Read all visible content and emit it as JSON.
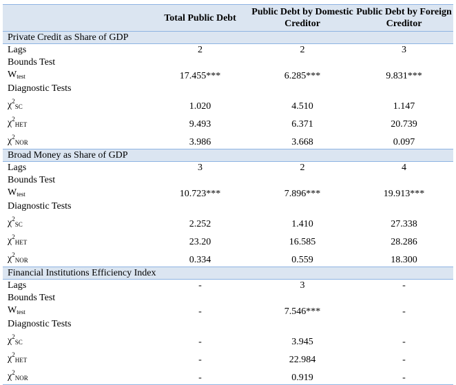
{
  "columns": [
    "",
    "Total Public Debt",
    "Public Debt by Domestic Creditor",
    "Public Debt by Foreign Creditor"
  ],
  "labels": {
    "lags": "Lags",
    "bounds_test": "Bounds Test",
    "w": "W",
    "w_sub": "test",
    "diagnostic": "Diagnostic Tests",
    "chi": "χ",
    "chi_sup": "2",
    "sc": "SC",
    "het": "HET",
    "nor": "NOR"
  },
  "sections": [
    {
      "title": "Private Credit as Share of GDP",
      "lags": [
        "2",
        "2",
        "3"
      ],
      "w_test": [
        "17.455***",
        "6.285***",
        "9.831***"
      ],
      "chi_sc": [
        "1.020",
        "4.510",
        "1.147"
      ],
      "chi_het": [
        "9.493",
        "6.371",
        "20.739"
      ],
      "chi_nor": [
        "3.986",
        "3.668",
        "0.097"
      ]
    },
    {
      "title": "Broad Money as Share of GDP",
      "lags": [
        "3",
        "2",
        "4"
      ],
      "w_test": [
        "10.723***",
        "7.896***",
        "19.913***"
      ],
      "chi_sc": [
        "2.252",
        "1.410",
        "27.338"
      ],
      "chi_het": [
        "23.20",
        "16.585",
        "28.286"
      ],
      "chi_nor": [
        "0.334",
        "0.559",
        "18.300"
      ]
    },
    {
      "title": "Financial Institutions Efficiency Index",
      "lags": [
        "-",
        "3",
        "-"
      ],
      "w_test": [
        "-",
        "7.546***",
        "-"
      ],
      "chi_sc": [
        "-",
        "3.945",
        "-"
      ],
      "chi_het": [
        "-",
        "22.984",
        "-"
      ],
      "chi_nor": [
        "-",
        "0.919",
        "-"
      ]
    }
  ]
}
